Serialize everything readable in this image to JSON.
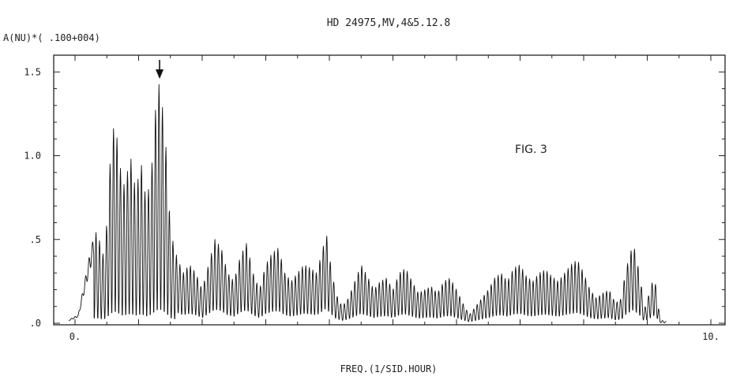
{
  "chart_data": {
    "type": "line",
    "title": "HD 24975,MV,4&5.12.8",
    "ylabel": "A(NU)*( .100+004)",
    "xlabel": "FREQ.(1/SID.HOUR)",
    "annotation": "FIG. 3",
    "xlim": [
      0,
      10
    ],
    "ylim": [
      0,
      1.6
    ],
    "x_ticks": [
      {
        "value": 0,
        "label": "0."
      },
      {
        "value": 10,
        "label": "10."
      }
    ],
    "y_ticks": [
      {
        "value": 0,
        "label": ".0"
      },
      {
        "value": 0.5,
        "label": ".5"
      },
      {
        "value": 1.0,
        "label": "1.0"
      },
      {
        "value": 1.5,
        "label": "1.5"
      }
    ],
    "arrow_marker_x": 1.33,
    "series": [
      {
        "color": "#111111",
        "envelope": [
          [
            -0.1,
            0.02
          ],
          [
            0.05,
            0.05
          ],
          [
            0.15,
            0.25
          ],
          [
            0.25,
            0.45
          ],
          [
            0.32,
            0.55
          ],
          [
            0.38,
            0.5
          ],
          [
            0.45,
            0.4
          ],
          [
            0.5,
            0.6
          ],
          [
            0.55,
            0.95
          ],
          [
            0.62,
            1.22
          ],
          [
            0.68,
            1.05
          ],
          [
            0.75,
            0.8
          ],
          [
            0.82,
            0.9
          ],
          [
            0.88,
            0.98
          ],
          [
            0.95,
            0.8
          ],
          [
            1.05,
            0.95
          ],
          [
            1.12,
            0.72
          ],
          [
            1.2,
            0.9
          ],
          [
            1.27,
            1.3
          ],
          [
            1.33,
            1.45
          ],
          [
            1.4,
            1.2
          ],
          [
            1.45,
            0.95
          ],
          [
            1.5,
            0.55
          ],
          [
            1.6,
            0.4
          ],
          [
            1.7,
            0.3
          ],
          [
            1.8,
            0.35
          ],
          [
            1.9,
            0.3
          ],
          [
            2.0,
            0.2
          ],
          [
            2.1,
            0.35
          ],
          [
            2.2,
            0.5
          ],
          [
            2.3,
            0.45
          ],
          [
            2.4,
            0.3
          ],
          [
            2.5,
            0.25
          ],
          [
            2.6,
            0.4
          ],
          [
            2.7,
            0.48
          ],
          [
            2.8,
            0.3
          ],
          [
            2.9,
            0.2
          ],
          [
            3.0,
            0.35
          ],
          [
            3.1,
            0.42
          ],
          [
            3.2,
            0.45
          ],
          [
            3.3,
            0.3
          ],
          [
            3.4,
            0.25
          ],
          [
            3.5,
            0.3
          ],
          [
            3.6,
            0.35
          ],
          [
            3.7,
            0.33
          ],
          [
            3.8,
            0.3
          ],
          [
            3.9,
            0.45
          ],
          [
            3.95,
            0.55
          ],
          [
            4.0,
            0.4
          ],
          [
            4.1,
            0.18
          ],
          [
            4.2,
            0.1
          ],
          [
            4.3,
            0.15
          ],
          [
            4.4,
            0.25
          ],
          [
            4.5,
            0.35
          ],
          [
            4.6,
            0.28
          ],
          [
            4.7,
            0.2
          ],
          [
            4.8,
            0.25
          ],
          [
            4.9,
            0.27
          ],
          [
            5.0,
            0.2
          ],
          [
            5.1,
            0.3
          ],
          [
            5.2,
            0.33
          ],
          [
            5.3,
            0.25
          ],
          [
            5.4,
            0.18
          ],
          [
            5.5,
            0.2
          ],
          [
            5.6,
            0.22
          ],
          [
            5.7,
            0.18
          ],
          [
            5.8,
            0.25
          ],
          [
            5.9,
            0.27
          ],
          [
            6.0,
            0.2
          ],
          [
            6.1,
            0.12
          ],
          [
            6.2,
            0.05
          ],
          [
            6.3,
            0.1
          ],
          [
            6.4,
            0.15
          ],
          [
            6.5,
            0.2
          ],
          [
            6.6,
            0.27
          ],
          [
            6.7,
            0.3
          ],
          [
            6.8,
            0.25
          ],
          [
            6.9,
            0.33
          ],
          [
            7.0,
            0.35
          ],
          [
            7.1,
            0.28
          ],
          [
            7.2,
            0.25
          ],
          [
            7.3,
            0.3
          ],
          [
            7.4,
            0.32
          ],
          [
            7.5,
            0.28
          ],
          [
            7.6,
            0.25
          ],
          [
            7.7,
            0.3
          ],
          [
            7.8,
            0.35
          ],
          [
            7.9,
            0.38
          ],
          [
            8.0,
            0.3
          ],
          [
            8.1,
            0.2
          ],
          [
            8.2,
            0.15
          ],
          [
            8.3,
            0.18
          ],
          [
            8.4,
            0.2
          ],
          [
            8.5,
            0.12
          ],
          [
            8.6,
            0.15
          ],
          [
            8.65,
            0.3
          ],
          [
            8.72,
            0.4
          ],
          [
            8.78,
            0.48
          ],
          [
            8.85,
            0.35
          ],
          [
            8.9,
            0.25
          ],
          [
            8.95,
            0.08
          ],
          [
            9.05,
            0.2
          ],
          [
            9.1,
            0.28
          ],
          [
            9.15,
            0.2
          ],
          [
            9.2,
            0.02
          ],
          [
            9.3,
            0.01
          ]
        ]
      }
    ]
  }
}
